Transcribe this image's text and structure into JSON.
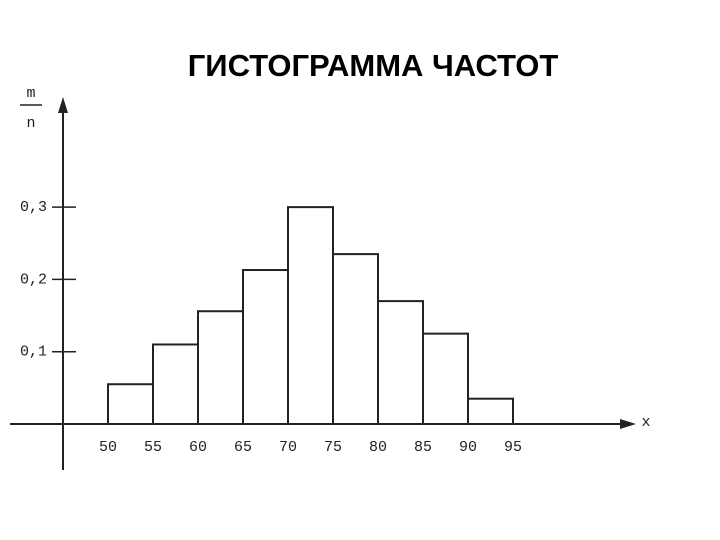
{
  "chart_data": {
    "type": "histogram",
    "title": "ГИСТОГРАММА ЧАСТОТ",
    "x_label": "x",
    "y_label": {
      "numerator": "m",
      "denominator": "n"
    },
    "bins": [
      50,
      55,
      60,
      65,
      70,
      75,
      80,
      85,
      90,
      95
    ],
    "values": [
      0.055,
      0.11,
      0.156,
      0.213,
      0.3,
      0.235,
      0.17,
      0.125,
      0.035
    ],
    "color": "#ffffff",
    "xlim": [
      45,
      108
    ],
    "xticks": [
      50,
      55,
      60,
      65,
      70,
      75,
      80,
      85,
      90,
      95
    ],
    "ylim": [
      0,
      0.45
    ],
    "yticks": [
      {
        "value": 0.1,
        "label": "0,1"
      },
      {
        "value": 0.2,
        "label": "0,2"
      },
      {
        "value": 0.3,
        "label": "0,3"
      }
    ]
  }
}
